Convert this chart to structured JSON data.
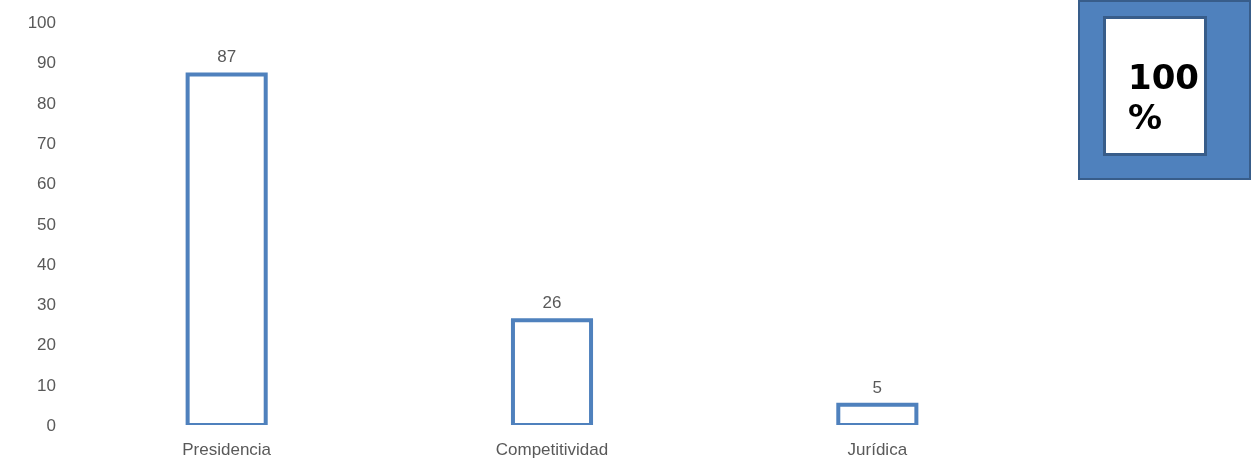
{
  "chart_data": {
    "type": "bar",
    "categories": [
      "Presidencia",
      "Competitividad",
      "Jurídica"
    ],
    "values": [
      87,
      26,
      5
    ],
    "color": "#4f81bd",
    "ylim": [
      0,
      100
    ],
    "yticks": [
      0,
      10,
      20,
      30,
      40,
      50,
      60,
      70,
      80,
      90,
      100
    ],
    "data_labels": true,
    "annotations": [
      "100 %"
    ]
  }
}
